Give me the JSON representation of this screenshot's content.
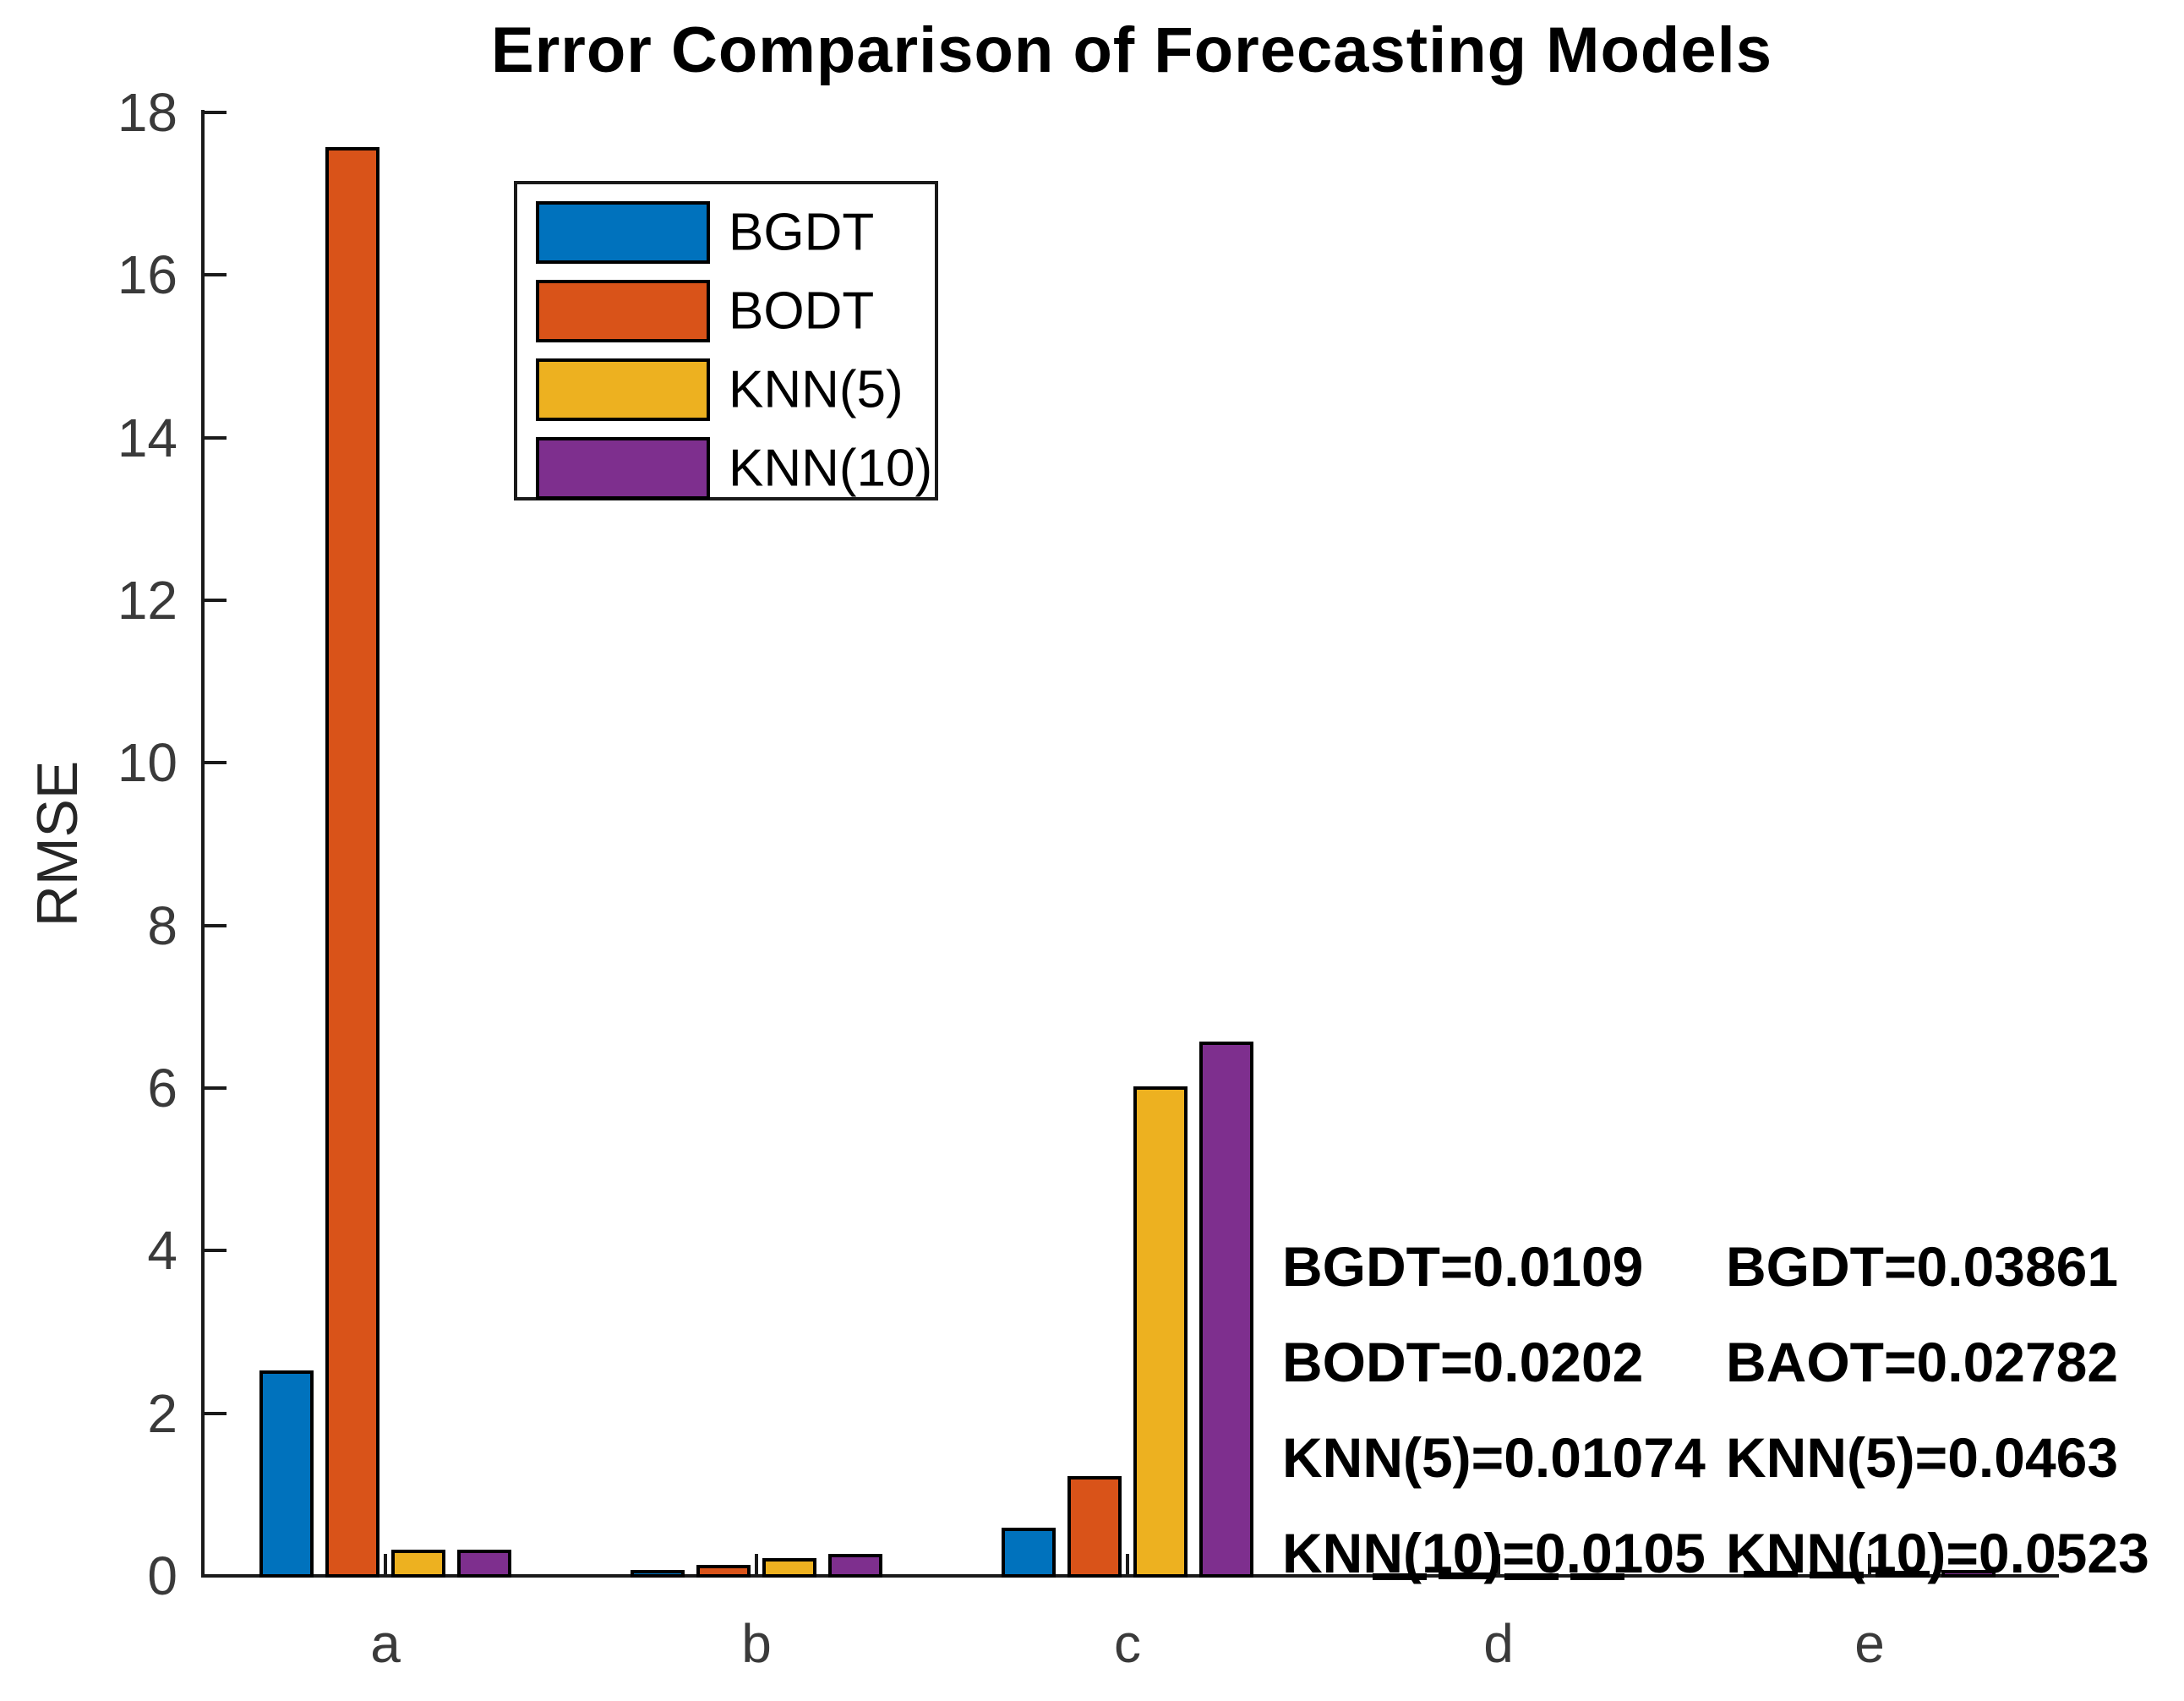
{
  "chart_data": {
    "type": "bar",
    "title": "Error Comparison of Forecasting Models",
    "xlabel": "",
    "ylabel": "RMSE",
    "categories": [
      "a",
      "b",
      "c",
      "d",
      "e"
    ],
    "series": [
      {
        "name": "BGDT",
        "color": "#0072BD",
        "values": [
          2.51,
          0.05,
          0.57,
          0.0109,
          0.03861
        ]
      },
      {
        "name": "BODT",
        "color": "#D95319",
        "values": [
          17.55,
          0.11,
          1.21,
          0.0202,
          0.02782
        ]
      },
      {
        "name": "KNN(5)",
        "color": "#EDB120",
        "values": [
          0.3,
          0.2,
          6.0,
          0.01074,
          0.0463
        ]
      },
      {
        "name": "KNN(10)",
        "color": "#7E2F8E",
        "values": [
          0.3,
          0.25,
          6.55,
          0.0105,
          0.0523
        ]
      }
    ],
    "ylim": [
      0,
      18
    ],
    "yticks": [
      0,
      2,
      4,
      6,
      8,
      10,
      12,
      14,
      16,
      18
    ],
    "grid": false,
    "legend_position": "upper-left-inside"
  },
  "annotations": {
    "left": [
      "BGDT=0.0109",
      "BODT=0.0202",
      "KNN(5)=0.01074",
      "KNN(10)=0.0105"
    ],
    "right": [
      "BGDT=0.03861",
      "BAOT=0.02782",
      "KNN(5)=0.0463",
      "KNN(10)=0.0523"
    ]
  },
  "colors": {
    "axis": "#1a1a1a",
    "tick_label": "#3a3a3a",
    "bar_edge": "#000000",
    "background": "#ffffff"
  }
}
